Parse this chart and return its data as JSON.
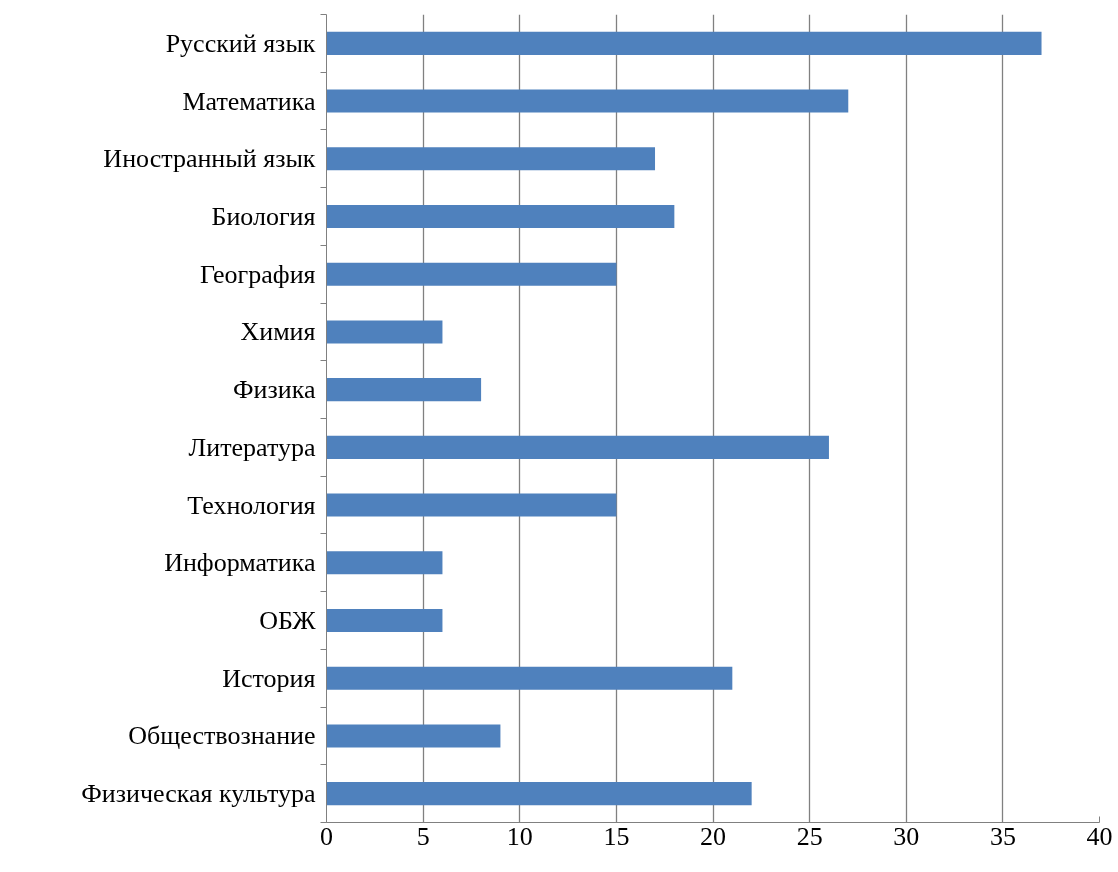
{
  "chart_data": {
    "type": "bar",
    "orientation": "horizontal",
    "categories": [
      "Русский язык",
      "Математика",
      "Иностранный язык",
      "Биология",
      "География",
      "Химия",
      "Физика",
      "Литература",
      "Технология",
      "Информатика",
      "ОБЖ",
      "История",
      "Обществознание",
      "Физическая культура"
    ],
    "values": [
      37,
      27,
      17,
      18,
      15,
      6,
      8,
      26,
      15,
      6,
      6,
      21,
      9,
      22
    ],
    "color": "#4f81bd",
    "xlim": [
      0,
      40
    ],
    "xticks": [
      0,
      5,
      10,
      15,
      20,
      25,
      30,
      35,
      40
    ],
    "grid": "x"
  }
}
